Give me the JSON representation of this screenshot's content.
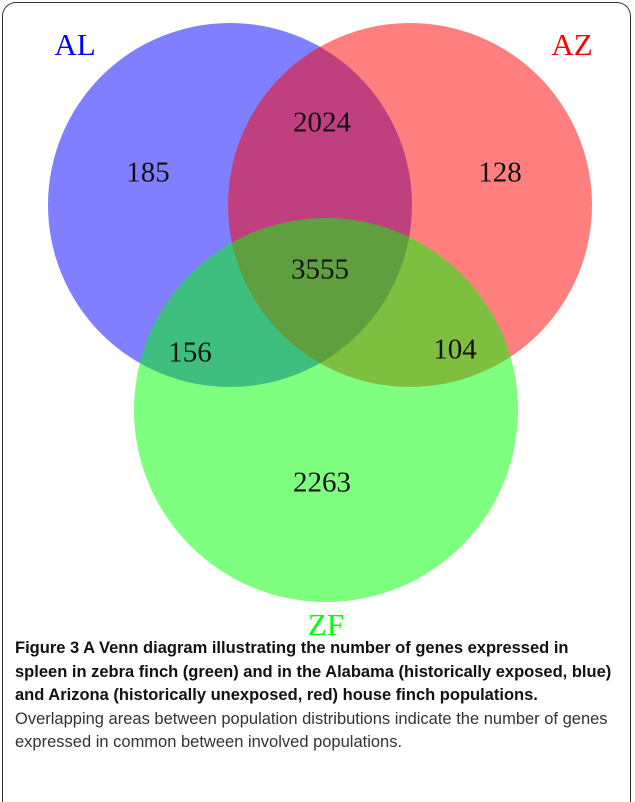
{
  "sets": [
    {
      "label": "AL",
      "color": "#0000ff"
    },
    {
      "label": "AZ",
      "color": "#ff0000"
    },
    {
      "label": "ZF",
      "color": "#00ff00"
    }
  ],
  "regions": [
    {
      "sets": "AL",
      "count": 185
    },
    {
      "sets": "AL AZ",
      "count": 2024
    },
    {
      "sets": "AZ",
      "count": 128
    },
    {
      "sets": "AL AZ ZF",
      "count": 3555
    },
    {
      "sets": "AL ZF",
      "count": 156
    },
    {
      "sets": "AZ ZF",
      "count": 104
    },
    {
      "sets": "ZF",
      "count": 2263
    }
  ],
  "caption": {
    "bold": "Figure 3 A Venn diagram illustrating the number of genes expressed in spleen in zebra finch (green) and in the Alabama (historically exposed, blue) and Arizona (historically unexposed, red) house finch populations.",
    "text": "Overlapping areas between population distributions indicate the number of genes expressed in common between involved populations."
  }
}
